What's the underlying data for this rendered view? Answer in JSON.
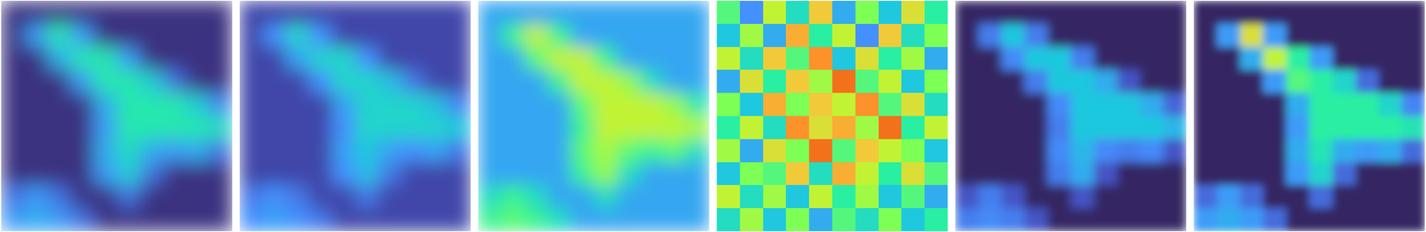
{
  "chart_data": [
    {
      "type": "heatmap",
      "tick_labels": false,
      "cells": [
        [
          0.05,
          0.05,
          0.05,
          0.05,
          0.05,
          0.05,
          0.05,
          0.05,
          0.05,
          0.05
        ],
        [
          0.05,
          0.22,
          0.38,
          0.22,
          0.05,
          0.05,
          0.05,
          0.05,
          0.05,
          0.05
        ],
        [
          0.05,
          0.05,
          0.25,
          0.38,
          0.38,
          0.22,
          0.05,
          0.05,
          0.05,
          0.05
        ],
        [
          0.05,
          0.05,
          0.05,
          0.22,
          0.38,
          0.38,
          0.31,
          0.15,
          0.05,
          0.05
        ],
        [
          0.05,
          0.05,
          0.05,
          0.05,
          0.25,
          0.38,
          0.38,
          0.38,
          0.31,
          0.18
        ],
        [
          0.05,
          0.05,
          0.05,
          0.05,
          0.22,
          0.38,
          0.38,
          0.38,
          0.38,
          0.35
        ],
        [
          0.05,
          0.05,
          0.05,
          0.05,
          0.25,
          0.35,
          0.25,
          0.22,
          0.25,
          0.15
        ],
        [
          0.05,
          0.05,
          0.05,
          0.05,
          0.22,
          0.31,
          0.15,
          0.05,
          0.05,
          0.05
        ],
        [
          0.15,
          0.22,
          0.15,
          0.05,
          0.05,
          0.15,
          0.05,
          0.05,
          0.05,
          0.05
        ],
        [
          0.22,
          0.25,
          0.22,
          0.15,
          0.05,
          0.05,
          0.05,
          0.05,
          0.05,
          0.05
        ]
      ]
    },
    {
      "type": "heatmap",
      "tick_labels": false,
      "cells": [
        [
          0.08,
          0.08,
          0.08,
          0.08,
          0.08,
          0.08,
          0.08,
          0.08,
          0.08,
          0.08
        ],
        [
          0.08,
          0.2,
          0.33,
          0.2,
          0.08,
          0.08,
          0.08,
          0.08,
          0.08,
          0.08
        ],
        [
          0.08,
          0.08,
          0.23,
          0.33,
          0.33,
          0.2,
          0.08,
          0.08,
          0.08,
          0.08
        ],
        [
          0.08,
          0.08,
          0.08,
          0.2,
          0.33,
          0.33,
          0.28,
          0.16,
          0.08,
          0.08
        ],
        [
          0.08,
          0.08,
          0.08,
          0.08,
          0.23,
          0.33,
          0.33,
          0.33,
          0.28,
          0.18
        ],
        [
          0.08,
          0.08,
          0.08,
          0.08,
          0.2,
          0.33,
          0.33,
          0.33,
          0.33,
          0.3
        ],
        [
          0.08,
          0.08,
          0.08,
          0.08,
          0.23,
          0.3,
          0.23,
          0.2,
          0.23,
          0.16
        ],
        [
          0.08,
          0.08,
          0.08,
          0.08,
          0.2,
          0.28,
          0.16,
          0.08,
          0.08,
          0.08
        ],
        [
          0.16,
          0.2,
          0.16,
          0.08,
          0.08,
          0.16,
          0.08,
          0.08,
          0.08,
          0.08
        ],
        [
          0.2,
          0.23,
          0.2,
          0.16,
          0.08,
          0.08,
          0.08,
          0.08,
          0.08,
          0.08
        ]
      ]
    },
    {
      "type": "heatmap",
      "tick_labels": false,
      "cells": [
        [
          0.24,
          0.24,
          0.24,
          0.24,
          0.24,
          0.24,
          0.24,
          0.24,
          0.24,
          0.24
        ],
        [
          0.24,
          0.42,
          0.6,
          0.42,
          0.24,
          0.24,
          0.24,
          0.24,
          0.24,
          0.24
        ],
        [
          0.24,
          0.24,
          0.46,
          0.6,
          0.6,
          0.42,
          0.24,
          0.24,
          0.24,
          0.24
        ],
        [
          0.24,
          0.24,
          0.24,
          0.42,
          0.6,
          0.6,
          0.53,
          0.35,
          0.24,
          0.24
        ],
        [
          0.24,
          0.24,
          0.24,
          0.24,
          0.46,
          0.6,
          0.6,
          0.6,
          0.53,
          0.38
        ],
        [
          0.24,
          0.24,
          0.24,
          0.24,
          0.42,
          0.6,
          0.6,
          0.6,
          0.6,
          0.56
        ],
        [
          0.24,
          0.24,
          0.24,
          0.24,
          0.46,
          0.56,
          0.46,
          0.42,
          0.46,
          0.35
        ],
        [
          0.24,
          0.24,
          0.24,
          0.24,
          0.42,
          0.53,
          0.35,
          0.24,
          0.24,
          0.24
        ],
        [
          0.35,
          0.42,
          0.35,
          0.24,
          0.24,
          0.35,
          0.24,
          0.24,
          0.24,
          0.24
        ],
        [
          0.42,
          0.46,
          0.42,
          0.35,
          0.24,
          0.24,
          0.24,
          0.24,
          0.24,
          0.24
        ]
      ]
    },
    {
      "type": "heatmap",
      "tick_labels": false,
      "cells": [
        [
          0.45,
          0.2,
          0.6,
          0.35,
          0.7,
          0.25,
          0.5,
          0.3,
          0.65,
          0.4
        ],
        [
          0.3,
          0.55,
          0.25,
          0.75,
          0.4,
          0.6,
          0.2,
          0.7,
          0.35,
          0.5
        ],
        [
          0.6,
          0.35,
          0.7,
          0.45,
          0.8,
          0.3,
          0.65,
          0.4,
          0.55,
          0.25
        ],
        [
          0.25,
          0.65,
          0.4,
          0.7,
          0.55,
          0.85,
          0.45,
          0.6,
          0.3,
          0.5
        ],
        [
          0.5,
          0.3,
          0.75,
          0.5,
          0.7,
          0.6,
          0.8,
          0.45,
          0.65,
          0.35
        ],
        [
          0.4,
          0.6,
          0.35,
          0.8,
          0.65,
          0.75,
          0.55,
          0.85,
          0.4,
          0.6
        ],
        [
          0.55,
          0.25,
          0.65,
          0.5,
          0.85,
          0.45,
          0.7,
          0.6,
          0.5,
          0.3
        ],
        [
          0.3,
          0.5,
          0.45,
          0.7,
          0.35,
          0.75,
          0.6,
          0.4,
          0.65,
          0.45
        ],
        [
          0.6,
          0.35,
          0.55,
          0.3,
          0.6,
          0.4,
          0.55,
          0.3,
          0.45,
          0.25
        ],
        [
          0.35,
          0.55,
          0.3,
          0.5,
          0.25,
          0.45,
          0.35,
          0.5,
          0.3,
          0.4
        ]
      ]
    },
    {
      "type": "heatmap",
      "tick_labels": false,
      "cells": [
        [
          0.03,
          0.03,
          0.03,
          0.03,
          0.03,
          0.03,
          0.03,
          0.03,
          0.03,
          0.03
        ],
        [
          0.03,
          0.17,
          0.3,
          0.17,
          0.03,
          0.03,
          0.03,
          0.03,
          0.03,
          0.03
        ],
        [
          0.03,
          0.03,
          0.19,
          0.3,
          0.3,
          0.17,
          0.03,
          0.03,
          0.03,
          0.03
        ],
        [
          0.03,
          0.03,
          0.03,
          0.17,
          0.3,
          0.3,
          0.25,
          0.1,
          0.03,
          0.03
        ],
        [
          0.03,
          0.03,
          0.03,
          0.03,
          0.19,
          0.3,
          0.3,
          0.3,
          0.25,
          0.13
        ],
        [
          0.03,
          0.03,
          0.03,
          0.03,
          0.17,
          0.3,
          0.3,
          0.3,
          0.3,
          0.27
        ],
        [
          0.03,
          0.03,
          0.03,
          0.03,
          0.19,
          0.27,
          0.19,
          0.17,
          0.19,
          0.1
        ],
        [
          0.03,
          0.03,
          0.03,
          0.03,
          0.17,
          0.25,
          0.1,
          0.03,
          0.03,
          0.03
        ],
        [
          0.1,
          0.17,
          0.1,
          0.03,
          0.03,
          0.1,
          0.03,
          0.03,
          0.03,
          0.03
        ],
        [
          0.17,
          0.19,
          0.17,
          0.1,
          0.03,
          0.03,
          0.03,
          0.03,
          0.03,
          0.03
        ]
      ]
    },
    {
      "type": "heatmap",
      "tick_labels": false,
      "cells": [
        [
          0.03,
          0.03,
          0.03,
          0.03,
          0.03,
          0.03,
          0.03,
          0.03,
          0.03,
          0.03
        ],
        [
          0.03,
          0.22,
          0.65,
          0.22,
          0.03,
          0.03,
          0.03,
          0.03,
          0.03,
          0.03
        ],
        [
          0.03,
          0.03,
          0.25,
          0.6,
          0.4,
          0.22,
          0.03,
          0.03,
          0.03,
          0.03
        ],
        [
          0.03,
          0.03,
          0.03,
          0.22,
          0.45,
          0.4,
          0.33,
          0.14,
          0.03,
          0.03
        ],
        [
          0.03,
          0.03,
          0.03,
          0.03,
          0.25,
          0.4,
          0.4,
          0.4,
          0.33,
          0.18
        ],
        [
          0.03,
          0.03,
          0.03,
          0.03,
          0.22,
          0.4,
          0.4,
          0.4,
          0.4,
          0.37
        ],
        [
          0.03,
          0.03,
          0.03,
          0.03,
          0.25,
          0.37,
          0.25,
          0.22,
          0.25,
          0.14
        ],
        [
          0.03,
          0.03,
          0.03,
          0.03,
          0.22,
          0.33,
          0.14,
          0.03,
          0.03,
          0.03
        ],
        [
          0.14,
          0.22,
          0.14,
          0.03,
          0.03,
          0.14,
          0.03,
          0.03,
          0.03,
          0.03
        ],
        [
          0.22,
          0.25,
          0.22,
          0.14,
          0.03,
          0.03,
          0.03,
          0.03,
          0.03,
          0.03
        ]
      ]
    }
  ]
}
